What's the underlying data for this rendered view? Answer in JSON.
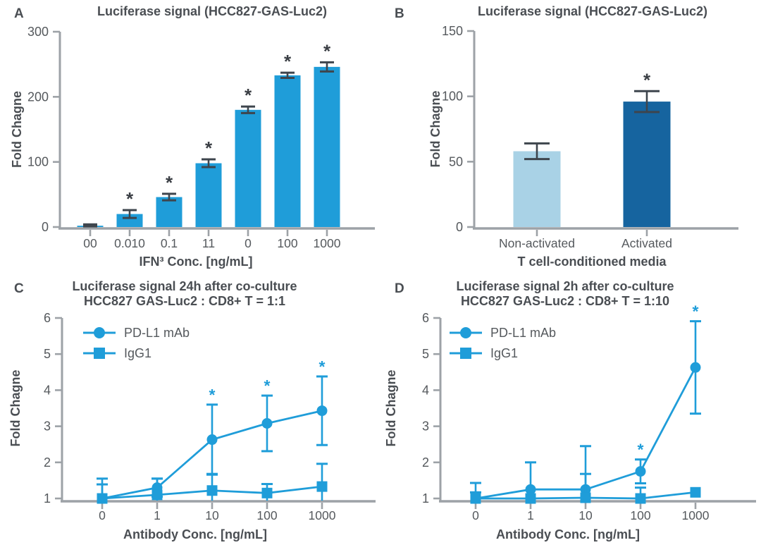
{
  "figure_title": "Luciferase reporter assay four-panel figure",
  "colors": {
    "primary_blue": "#1F9DD9",
    "light_blue": "#A9D2E6",
    "dark_blue": "#16649F",
    "error_dark": "#3E454D",
    "axis_gray": "#9DA2A7",
    "text_gray": "#55595D",
    "title_gray": "#4A4E53",
    "asterisk_dark": "#3A3E44"
  },
  "chart_data": [
    {
      "panel": "A",
      "type": "bar",
      "title_lines": [
        "Luciferase signal (HCC827-GAS-Luc2)"
      ],
      "ylabel": "Fold Chagne",
      "xlabel": "IFN³ Conc. [ng/mL]",
      "categories": [
        "00",
        "0.010",
        "0.1",
        "11",
        "0",
        "100",
        "1000"
      ],
      "values": [
        2,
        20,
        46,
        98,
        180,
        233,
        246
      ],
      "errors": [
        2,
        6,
        5,
        6,
        5,
        4,
        7
      ],
      "significant": [
        false,
        true,
        true,
        true,
        true,
        true,
        true
      ],
      "sig_symbol": "*",
      "ylim": [
        0,
        300
      ],
      "yticks": [
        0,
        100,
        200,
        300
      ],
      "grid": false,
      "bar_color": "#1F9DD9"
    },
    {
      "panel": "B",
      "type": "bar",
      "title_lines": [
        "Luciferase signal (HCC827-GAS-Luc2)"
      ],
      "ylabel": "Fold Chagne",
      "xlabel": "T cell-conditioned media",
      "categories": [
        "Non-activated",
        "Activated"
      ],
      "values": [
        58,
        96
      ],
      "errors": [
        6,
        8
      ],
      "significant": [
        false,
        true
      ],
      "sig_symbol": "*",
      "ylim": [
        0,
        150
      ],
      "yticks": [
        0,
        50,
        100,
        150
      ],
      "grid": false,
      "bar_colors": [
        "#A9D2E6",
        "#16649F"
      ]
    },
    {
      "panel": "C",
      "type": "line",
      "title_lines": [
        "Luciferase signal 24h after co-culture",
        "HCC827 GAS-Luc2 : CD8+ T = 1:1"
      ],
      "ylabel": "Fold Chagne",
      "xlabel": "Antibody Conc. [ng/mL]",
      "x": [
        "0",
        "1",
        "10",
        "100",
        "1000"
      ],
      "series": [
        {
          "name": "PD-L1 mAb",
          "marker": "circle",
          "values": [
            1.0,
            1.3,
            2.63,
            3.08,
            3.43
          ],
          "errors": [
            0.55,
            0.25,
            0.97,
            0.77,
            0.95
          ],
          "significant": [
            false,
            false,
            true,
            true,
            true
          ]
        },
        {
          "name": "IgG1",
          "marker": "square",
          "values": [
            1.0,
            1.1,
            1.22,
            1.15,
            1.33
          ],
          "errors": [
            0.39,
            0.45,
            0.46,
            0.25,
            0.63
          ],
          "significant": [
            false,
            false,
            false,
            false,
            false
          ]
        }
      ],
      "sig_symbol": "*",
      "ylim": [
        1,
        6
      ],
      "yticks": [
        1,
        2,
        3,
        4,
        5,
        6
      ],
      "grid": false,
      "legend_position": "top-left",
      "line_color": "#1F9DD9"
    },
    {
      "panel": "D",
      "type": "line",
      "title_lines": [
        "Luciferase signal 2h after co-culture",
        "HCC827 GAS-Luc2 : CD8+ T = 1:10"
      ],
      "ylabel": "Fold Chagne",
      "xlabel": "Antibody Conc. [ng/mL]",
      "x": [
        "0",
        "1",
        "10",
        "100",
        "1000"
      ],
      "series": [
        {
          "name": "PD-L1 mAb",
          "marker": "circle",
          "values": [
            1.0,
            1.25,
            1.25,
            1.75,
            4.63
          ],
          "errors": [
            0.43,
            0.75,
            1.2,
            0.33,
            1.28
          ],
          "significant": [
            false,
            false,
            false,
            true,
            true
          ]
        },
        {
          "name": "IgG1",
          "marker": "square",
          "values": [
            1.0,
            1.0,
            1.02,
            1.0,
            1.17
          ],
          "errors": [
            0.17,
            0.0,
            0.66,
            0.3,
            0.0
          ],
          "significant": [
            false,
            false,
            false,
            false,
            false
          ]
        }
      ],
      "sig_symbol": "*",
      "ylim": [
        1,
        6
      ],
      "yticks": [
        1,
        2,
        3,
        4,
        5,
        6
      ],
      "grid": false,
      "legend_position": "top-left",
      "line_color": "#1F9DD9"
    }
  ]
}
